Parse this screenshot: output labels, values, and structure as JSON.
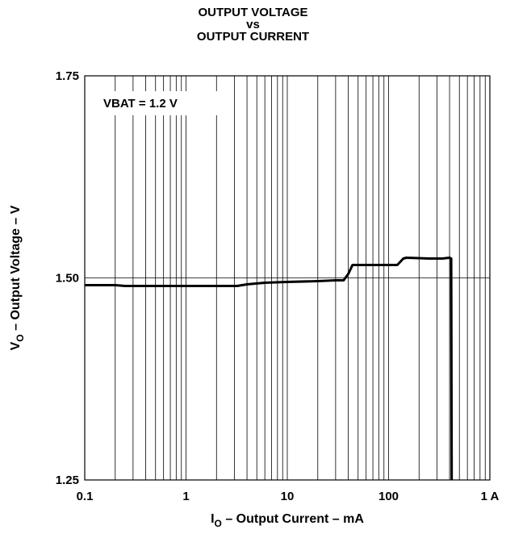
{
  "chart_data": {
    "type": "line",
    "title": [
      "OUTPUT VOLTAGE",
      "vs",
      "OUTPUT CURRENT"
    ],
    "xlabel": {
      "main": "I",
      "sub": "O",
      "rest": " – Output Current – mA"
    },
    "ylabel": {
      "main": "V",
      "sub": "O",
      "rest": " – Output Voltage – V"
    },
    "x_scale": "log",
    "xlim": [
      0.1,
      1000
    ],
    "ylim": [
      1.25,
      1.75
    ],
    "x_ticks": [
      {
        "value": 0.1,
        "label": "0.1"
      },
      {
        "value": 1,
        "label": "1"
      },
      {
        "value": 10,
        "label": "10"
      },
      {
        "value": 100,
        "label": "100"
      },
      {
        "value": 1000,
        "label": "1 A"
      }
    ],
    "y_ticks": [
      {
        "value": 1.25,
        "label": "1.25"
      },
      {
        "value": 1.5,
        "label": "1.50"
      },
      {
        "value": 1.75,
        "label": "1.75"
      }
    ],
    "grid": {
      "x": "log-minor",
      "y": [
        1.5
      ]
    },
    "annotation": "VBAT = 1.2 V",
    "series": [
      {
        "color": "#000000",
        "points": [
          [
            0.1,
            1.491
          ],
          [
            0.2,
            1.491
          ],
          [
            0.25,
            1.49
          ],
          [
            0.5,
            1.49
          ],
          [
            1,
            1.49
          ],
          [
            2,
            1.49
          ],
          [
            3.2,
            1.49
          ],
          [
            4,
            1.492
          ],
          [
            6,
            1.494
          ],
          [
            10,
            1.495
          ],
          [
            20,
            1.496
          ],
          [
            30,
            1.497
          ],
          [
            36,
            1.497
          ],
          [
            40,
            1.505
          ],
          [
            44,
            1.516
          ],
          [
            70,
            1.516
          ],
          [
            112,
            1.516
          ],
          [
            122,
            1.516
          ],
          [
            140,
            1.524
          ],
          [
            150,
            1.525
          ],
          [
            250,
            1.524
          ],
          [
            340,
            1.524
          ],
          [
            400,
            1.525
          ],
          [
            415,
            1.524
          ],
          [
            420,
            1.25
          ]
        ]
      }
    ]
  }
}
